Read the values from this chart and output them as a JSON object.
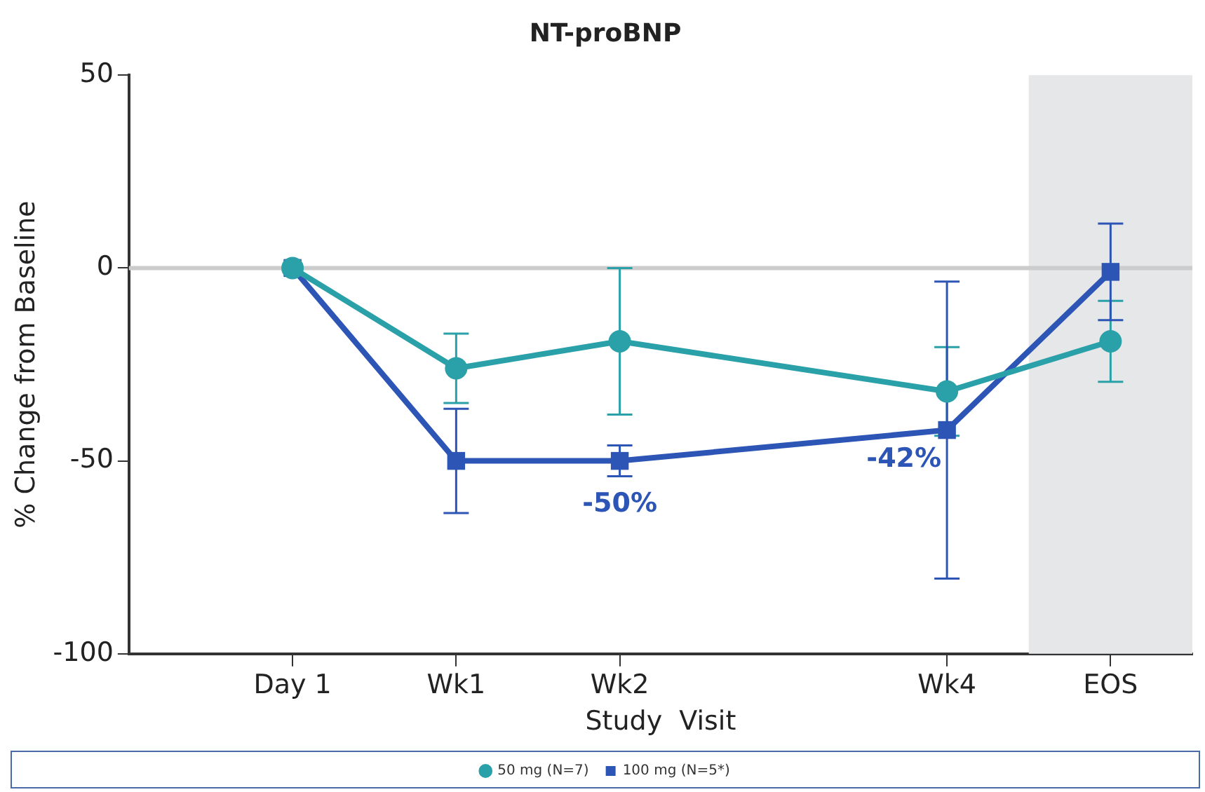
{
  "chart_data": {
    "type": "line",
    "title": "NT-proBNP",
    "xlabel": "Study  Visit",
    "ylabel": "% Change from Baseline",
    "categories": [
      "Day 1",
      "Wk1",
      "Wk2",
      null,
      "Wk4",
      "EOS"
    ],
    "ylim": [
      -100,
      50
    ],
    "yticks": [
      -100,
      -50,
      0,
      50
    ],
    "series": [
      {
        "name": "50 mg (N=7)",
        "color": "#2aa0a8",
        "marker": "circle",
        "values": [
          0,
          -26,
          -19,
          null,
          -32,
          -19
        ],
        "errors": [
          null,
          9,
          19,
          null,
          11.5,
          10.5
        ]
      },
      {
        "name": "100 mg (N=5*)",
        "color": "#2d55b5",
        "marker": "square",
        "values": [
          0,
          -50,
          -50,
          null,
          -42,
          -1
        ],
        "errors": [
          null,
          13.5,
          4,
          null,
          38.5,
          12.5
        ]
      }
    ],
    "ref_lines": [
      {
        "axis": "y",
        "value": 0,
        "color": "#cccccc"
      }
    ],
    "bands": [
      {
        "axis": "x",
        "from": "EOS",
        "to": "EOS",
        "color": "#e6e7e9"
      }
    ],
    "annotations": [
      {
        "text": "-50%",
        "x": "Wk2",
        "y": -50
      },
      {
        "text": "-42%",
        "x": "Wk4",
        "y": -42
      }
    ],
    "grid": false,
    "legend": "bottom",
    "line_style": "solid"
  }
}
